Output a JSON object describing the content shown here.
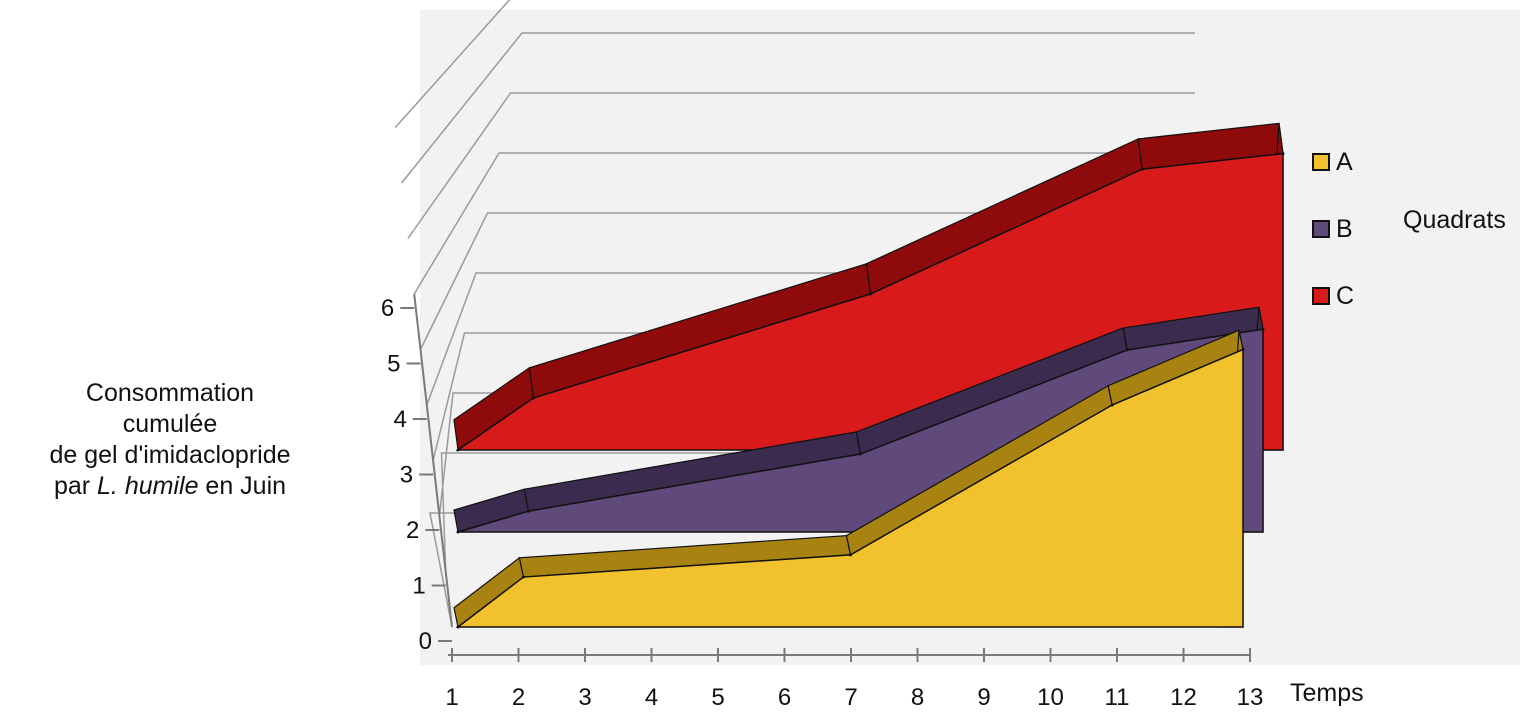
{
  "chart_data": {
    "type": "area",
    "style": "3d-stacked-depth",
    "x": [
      1,
      2,
      3,
      4,
      5,
      6,
      7,
      8,
      9,
      10,
      11,
      12,
      13
    ],
    "xlabel": "Temps",
    "ylabel": {
      "line1": "Consommation",
      "line2": "cumulée",
      "line3": "de gel d'imidaclopride",
      "line4_pre": "par ",
      "line4_italic": "L. humile",
      "line4_post": " en Juin"
    },
    "ylim": [
      0,
      6
    ],
    "yticks": [
      0,
      1,
      2,
      3,
      4,
      5,
      6
    ],
    "grid": true,
    "legend_title": "Quadrats",
    "legend_position": "right",
    "series": [
      {
        "name": "A",
        "color": "#f2c12e",
        "top_color": "#a88312",
        "x": [
          1,
          2,
          7,
          11,
          13
        ],
        "values": [
          0,
          0.9,
          1.3,
          4.0,
          5.0
        ]
      },
      {
        "name": "B",
        "color": "#604a7b",
        "top_color": "#3a2b4f",
        "x": [
          1,
          2,
          7,
          11,
          13
        ],
        "values": [
          0,
          0.4,
          1.5,
          3.5,
          3.9
        ]
      },
      {
        "name": "C",
        "color": "#d91a1a",
        "top_color": "#8f0a0a",
        "x": [
          1,
          2,
          7,
          11,
          13
        ],
        "values": [
          0,
          1.0,
          3.0,
          5.4,
          5.7
        ]
      }
    ]
  }
}
